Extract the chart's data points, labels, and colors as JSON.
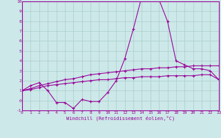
{
  "xlabel": "Windchill (Refroidissement éolien,°C)",
  "background_color": "#cce8e8",
  "grid_color": "#aacccc",
  "line_color": "#990099",
  "xlim": [
    0,
    23
  ],
  "ylim": [
    -1,
    10
  ],
  "xticks": [
    0,
    1,
    2,
    3,
    4,
    5,
    6,
    7,
    8,
    9,
    10,
    11,
    12,
    13,
    14,
    15,
    16,
    17,
    18,
    19,
    20,
    21,
    22,
    23
  ],
  "yticks": [
    -1,
    0,
    1,
    2,
    3,
    4,
    5,
    6,
    7,
    8,
    9,
    10
  ],
  "line1_x": [
    0,
    1,
    2,
    3,
    4,
    5,
    6,
    7,
    8,
    9,
    10,
    11,
    12,
    13,
    14,
    15,
    16,
    17,
    18,
    19,
    20,
    21,
    22,
    23
  ],
  "line1_y": [
    1.0,
    1.5,
    1.8,
    1.0,
    -0.2,
    -0.2,
    -0.8,
    0.1,
    -0.1,
    -0.1,
    0.8,
    2.0,
    4.2,
    7.2,
    10.5,
    10.2,
    10.2,
    8.0,
    4.0,
    3.6,
    3.2,
    3.2,
    3.0,
    2.1
  ],
  "line2_x": [
    0,
    1,
    2,
    3,
    4,
    5,
    6,
    7,
    8,
    9,
    10,
    11,
    12,
    13,
    14,
    15,
    16,
    17,
    18,
    19,
    20,
    21,
    22,
    23
  ],
  "line2_y": [
    1.0,
    1.2,
    1.5,
    1.7,
    1.9,
    2.1,
    2.2,
    2.4,
    2.6,
    2.7,
    2.8,
    2.9,
    3.0,
    3.1,
    3.2,
    3.2,
    3.3,
    3.3,
    3.4,
    3.4,
    3.5,
    3.5,
    3.5,
    3.5
  ],
  "line3_x": [
    0,
    1,
    2,
    3,
    4,
    5,
    6,
    7,
    8,
    9,
    10,
    11,
    12,
    13,
    14,
    15,
    16,
    17,
    18,
    19,
    20,
    21,
    22,
    23
  ],
  "line3_y": [
    1.0,
    1.1,
    1.3,
    1.5,
    1.6,
    1.7,
    1.8,
    1.9,
    2.0,
    2.1,
    2.1,
    2.2,
    2.3,
    2.3,
    2.4,
    2.4,
    2.4,
    2.5,
    2.5,
    2.5,
    2.5,
    2.6,
    2.6,
    2.1
  ]
}
